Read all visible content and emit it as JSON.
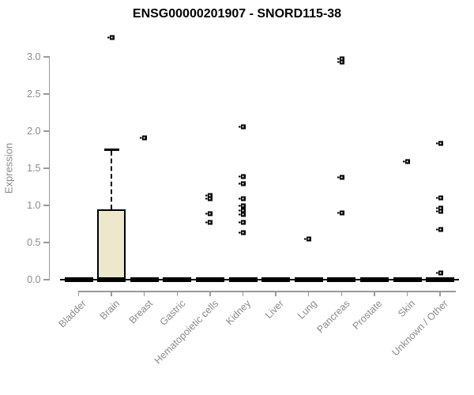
{
  "chart_data": {
    "type": "boxplot",
    "title": "ENSG00000201907 - SNORD115-38",
    "ylabel": "Expression",
    "xlabel": "",
    "ylim": [
      0,
      3.3
    ],
    "yticks": [
      "0.0",
      "0.5",
      "1.0",
      "1.5",
      "2.0",
      "2.5",
      "3.0"
    ],
    "grid": false,
    "legend": null,
    "categories": [
      "Bladder",
      "Brain",
      "Breast",
      "Gastric",
      "Hematopoietic cells",
      "Kidney",
      "Liver",
      "Lung",
      "Pancreas",
      "Prostate",
      "Skin",
      "Unknown / Other"
    ],
    "boxes": [
      {
        "category": "Bladder",
        "median": 0,
        "q1": 0,
        "q3": 0,
        "whisker_low": 0,
        "whisker_high": 0,
        "outliers": []
      },
      {
        "category": "Brain",
        "median": 0,
        "q1": 0,
        "q3": 0.95,
        "whisker_low": 0,
        "whisker_high": 1.74,
        "outliers": [
          3.32
        ]
      },
      {
        "category": "Breast",
        "median": 0,
        "q1": 0,
        "q3": 0,
        "whisker_low": 0,
        "whisker_high": 0,
        "outliers": [
          1.97
        ]
      },
      {
        "category": "Gastric",
        "median": 0,
        "q1": 0,
        "q3": 0,
        "whisker_low": 0,
        "whisker_high": 0,
        "outliers": []
      },
      {
        "category": "Hematopoietic cells",
        "median": 0,
        "q1": 0,
        "q3": 0,
        "whisker_low": 0,
        "whisker_high": 0,
        "outliers": [
          1.2,
          1.15,
          0.95,
          0.84
        ]
      },
      {
        "category": "Kidney",
        "median": 0,
        "q1": 0,
        "q3": 0,
        "whisker_low": 0,
        "whisker_high": 0,
        "outliers": [
          2.12,
          1.45,
          1.36,
          1.15,
          1.06,
          1.0,
          0.94,
          0.83,
          0.7
        ]
      },
      {
        "category": "Liver",
        "median": 0,
        "q1": 0,
        "q3": 0,
        "whisker_low": 0,
        "whisker_high": 0,
        "outliers": []
      },
      {
        "category": "Lung",
        "median": 0,
        "q1": 0,
        "q3": 0,
        "whisker_low": 0,
        "whisker_high": 0,
        "outliers": [
          0.61
        ]
      },
      {
        "category": "Pancreas",
        "median": 0,
        "q1": 0,
        "q3": 0,
        "whisker_low": 0,
        "whisker_high": 0,
        "outliers": [
          3.04,
          2.99,
          1.44,
          0.96
        ]
      },
      {
        "category": "Prostate",
        "median": 0,
        "q1": 0,
        "q3": 0,
        "whisker_low": 0,
        "whisker_high": 0,
        "outliers": []
      },
      {
        "category": "Skin",
        "median": 0,
        "q1": 0,
        "q3": 0,
        "whisker_low": 0,
        "whisker_high": 0,
        "outliers": [
          1.65
        ]
      },
      {
        "category": "Unknown / Other",
        "median": 0,
        "q1": 0,
        "q3": 0,
        "whisker_low": 0,
        "whisker_high": 0,
        "outliers": [
          1.9,
          1.17,
          1.03,
          0.98,
          0.74,
          0.15
        ]
      }
    ],
    "colors": {
      "box_fill": "#EDE7CC",
      "box_border": "#000000",
      "point": "#000000",
      "axis": "#999999",
      "text": "#8A8A8A",
      "title": "#000000"
    }
  }
}
